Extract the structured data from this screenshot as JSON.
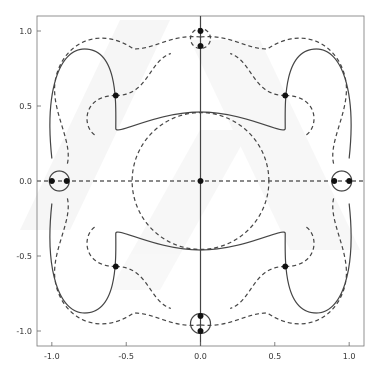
{
  "chart_data": {
    "type": "line",
    "title": "",
    "xlabel": "",
    "ylabel": "",
    "xlim": [
      -1.1,
      1.1
    ],
    "ylim": [
      -1.1,
      1.1
    ],
    "grid": false,
    "x_ticks": [
      -1.0,
      -0.5,
      0.0,
      0.5,
      1.0
    ],
    "x_tick_labels": [
      "-1.0",
      "-0.5",
      "0.0",
      "0.5",
      "1.0"
    ],
    "y_ticks": [
      1.0,
      0.5,
      0.0,
      -0.5,
      -1.0
    ],
    "y_tick_labels": [
      "1.0",
      "0.5",
      "0.0",
      "-0.5",
      "-1.0"
    ],
    "series": [
      {
        "style": "solid",
        "description_points": [
          [
            0.0,
            -1.1
          ],
          [
            0.0,
            1.1
          ]
        ]
      },
      {
        "style": "dashed",
        "description_points": [
          [
            -1.1,
            0.0
          ],
          [
            1.1,
            0.0
          ]
        ]
      }
    ],
    "points": [
      {
        "x": 0.0,
        "y": 0.0
      },
      {
        "x": -0.57,
        "y": 0.57
      },
      {
        "x": 0.57,
        "y": 0.57
      },
      {
        "x": -0.57,
        "y": -0.57
      },
      {
        "x": 0.57,
        "y": -0.57
      },
      {
        "x": 0.0,
        "y": 1.0
      },
      {
        "x": 0.0,
        "y": 0.9
      },
      {
        "x": 0.0,
        "y": -0.9
      },
      {
        "x": 0.0,
        "y": -1.0
      },
      {
        "x": -1.0,
        "y": 0.0
      },
      {
        "x": -0.9,
        "y": 0.0
      },
      {
        "x": 0.9,
        "y": 0.0
      },
      {
        "x": 1.0,
        "y": 0.0
      }
    ]
  },
  "colors": {
    "curve": "#444444",
    "point": "#111111",
    "watermark": "#eeeeee"
  }
}
